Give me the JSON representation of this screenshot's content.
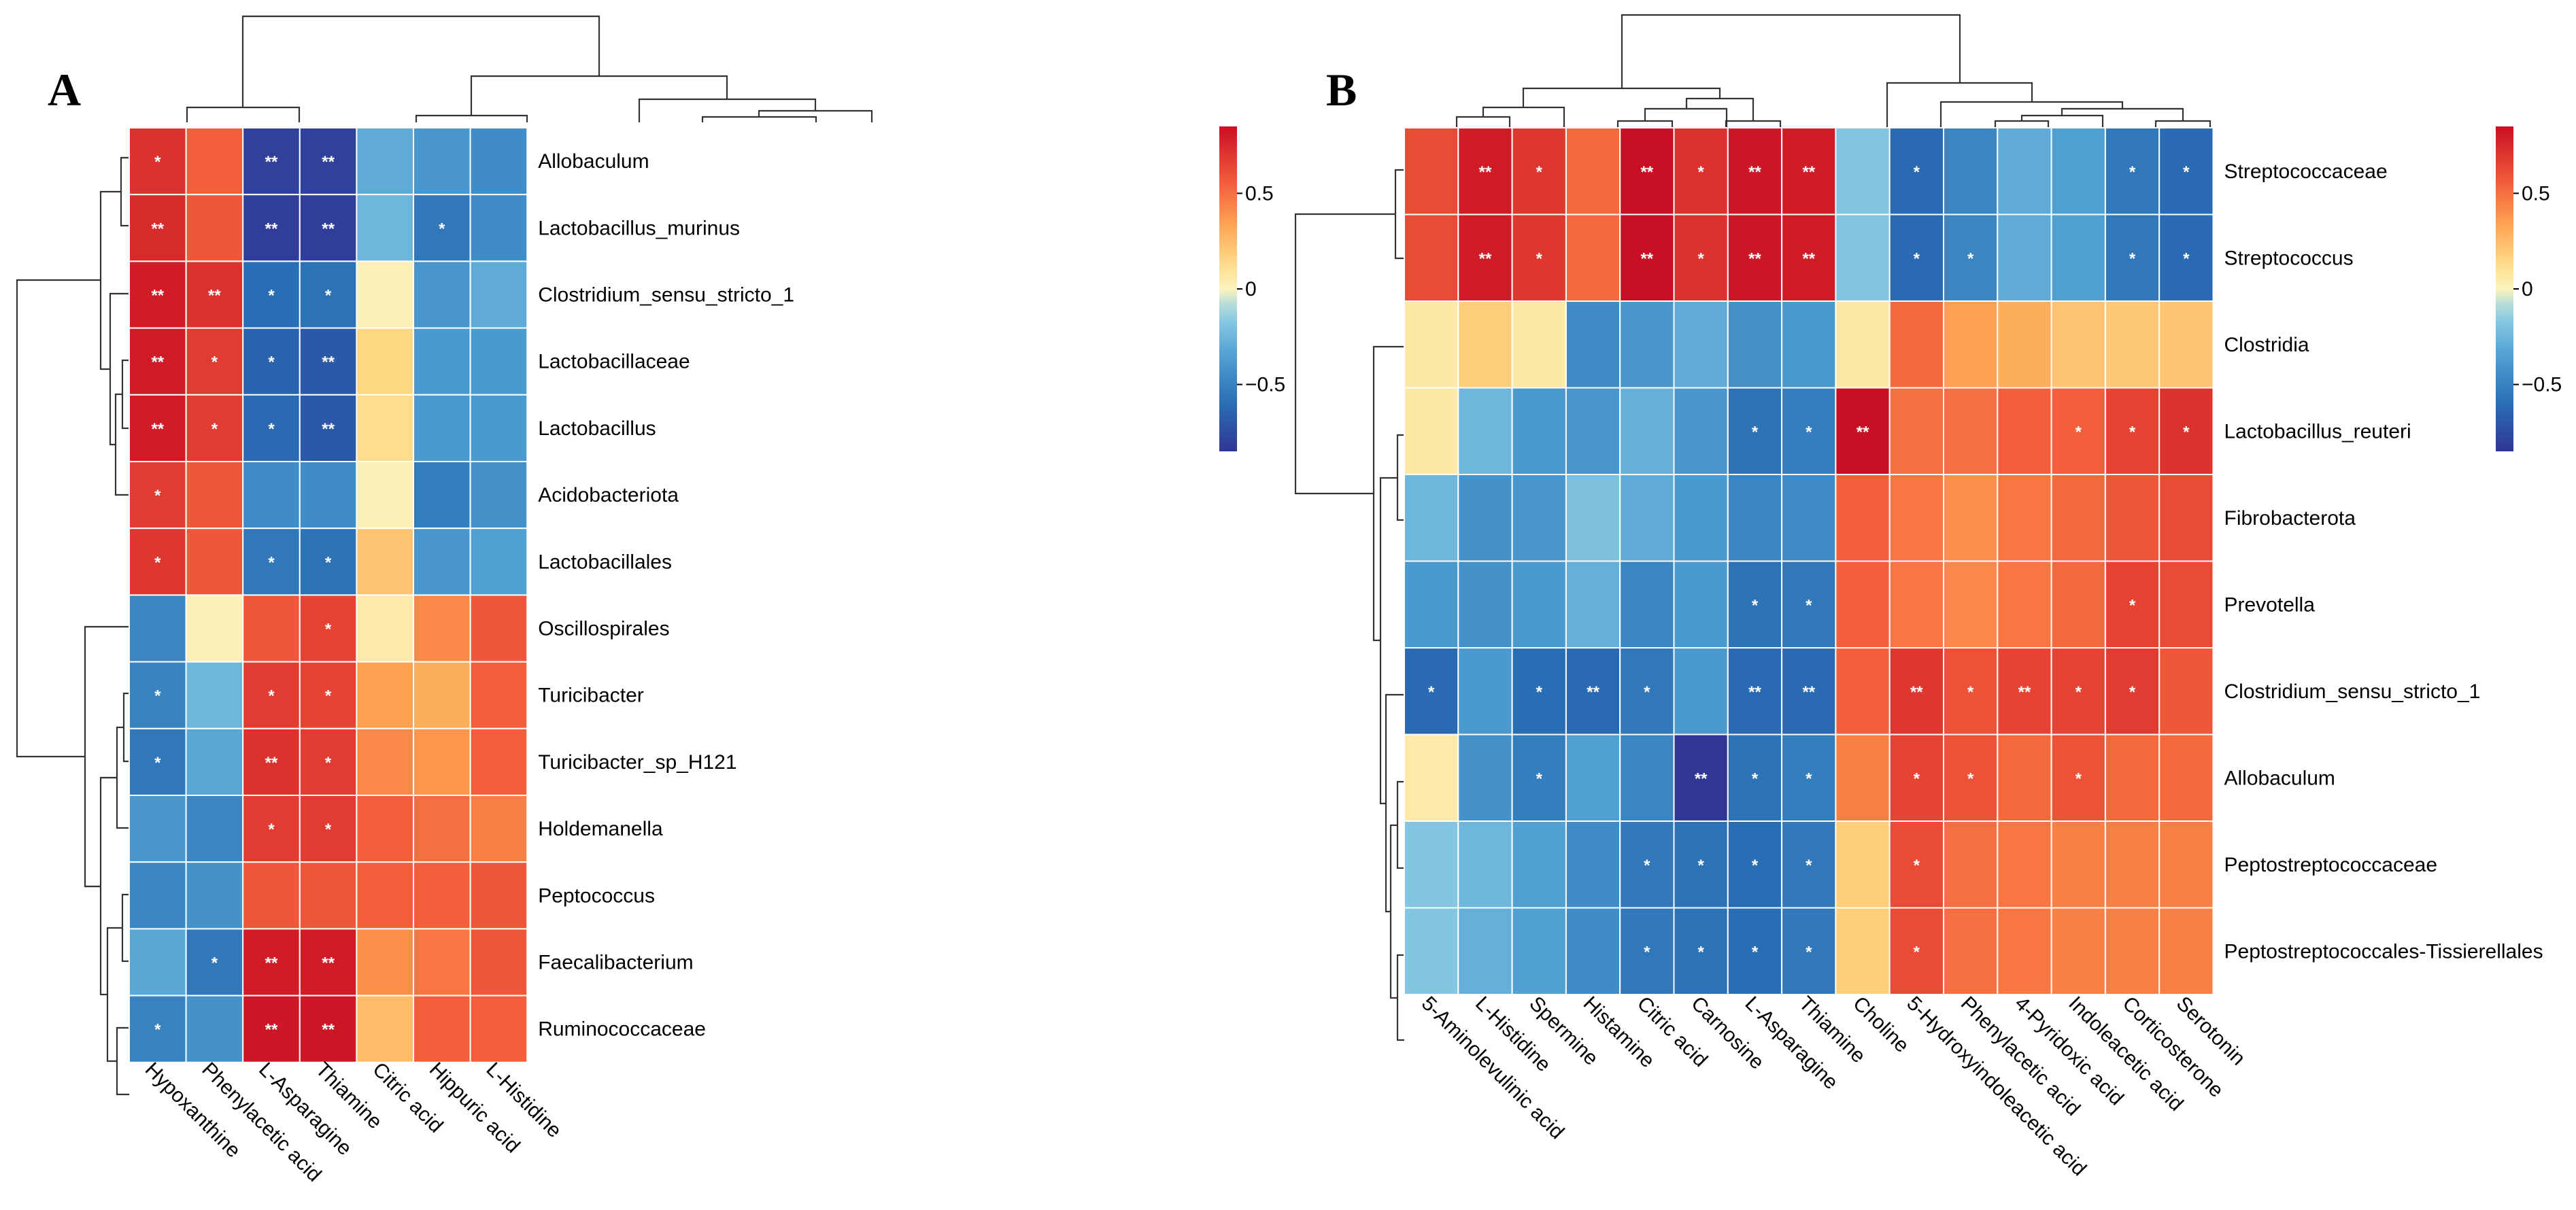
{
  "chart_data": [
    {
      "type": "heatmap",
      "panel": "A",
      "rows": [
        "Allobaculum",
        "Lactobacillus_murinus",
        "Clostridium_sensu_stricto_1",
        "Lactobacillaceae",
        "Lactobacillus",
        "Acidobacteriota",
        "Lactobacillales",
        "Oscillospirales",
        "Turicibacter",
        "Turicibacter_sp_H121",
        "Holdemanella",
        "Peptococcus",
        "Faecalibacterium",
        "Ruminococcaceae"
      ],
      "columns": [
        "Hypoxanthine",
        "Phenylacetic acid",
        "L-Asparagine",
        "Thiamine",
        "Citric acid",
        "Hippuric acid",
        "L-Histidine"
      ],
      "values": [
        [
          0.72,
          0.55,
          -0.8,
          -0.8,
          -0.3,
          -0.4,
          -0.45
        ],
        [
          0.75,
          0.58,
          -0.82,
          -0.82,
          -0.25,
          -0.55,
          -0.45
        ],
        [
          0.8,
          0.72,
          -0.6,
          -0.58,
          0.02,
          -0.4,
          -0.3
        ],
        [
          0.8,
          0.68,
          -0.65,
          -0.7,
          0.15,
          -0.38,
          -0.38
        ],
        [
          0.8,
          0.68,
          -0.62,
          -0.7,
          0.12,
          -0.38,
          -0.38
        ],
        [
          0.68,
          0.58,
          -0.45,
          -0.45,
          0.02,
          -0.52,
          -0.42
        ],
        [
          0.7,
          0.58,
          -0.55,
          -0.58,
          0.22,
          -0.4,
          -0.35
        ],
        [
          -0.48,
          0.02,
          0.58,
          0.65,
          0.05,
          0.42,
          0.58
        ],
        [
          -0.5,
          -0.25,
          0.68,
          0.65,
          0.35,
          0.3,
          0.55
        ],
        [
          -0.55,
          -0.32,
          0.72,
          0.68,
          0.42,
          0.38,
          0.55
        ],
        [
          -0.4,
          -0.48,
          0.68,
          0.68,
          0.55,
          0.5,
          0.45
        ],
        [
          -0.48,
          -0.42,
          0.58,
          0.58,
          0.55,
          0.55,
          0.58
        ],
        [
          -0.32,
          -0.55,
          0.8,
          0.8,
          0.4,
          0.48,
          0.58
        ],
        [
          -0.5,
          -0.42,
          0.82,
          0.82,
          0.25,
          0.55,
          0.55
        ]
      ],
      "significance": [
        [
          "*",
          "",
          "**",
          "**",
          "",
          "",
          ""
        ],
        [
          "**",
          "",
          "**",
          "**",
          "",
          "*",
          ""
        ],
        [
          "**",
          "**",
          "*",
          "*",
          "",
          "",
          ""
        ],
        [
          "**",
          "*",
          "*",
          "**",
          "",
          "",
          ""
        ],
        [
          "**",
          "*",
          "*",
          "**",
          "",
          "",
          ""
        ],
        [
          "*",
          "",
          "",
          "",
          "",
          "",
          ""
        ],
        [
          "*",
          "",
          "*",
          "*",
          "",
          "",
          ""
        ],
        [
          "",
          "",
          "",
          "*",
          "",
          "",
          ""
        ],
        [
          "*",
          "",
          "*",
          "*",
          "",
          "",
          ""
        ],
        [
          "*",
          "",
          "**",
          "*",
          "",
          "",
          ""
        ],
        [
          "",
          "",
          "*",
          "*",
          "",
          "",
          ""
        ],
        [
          "",
          "",
          "",
          "",
          "",
          "",
          ""
        ],
        [
          "",
          "*",
          "**",
          "**",
          "",
          "",
          ""
        ],
        [
          "*",
          "",
          "**",
          "**",
          "",
          "",
          ""
        ]
      ],
      "legend_ticks": [
        "0.5",
        "0",
        "−0.5"
      ],
      "legend_values": [
        0.5,
        0,
        -0.5
      ],
      "value_range": [
        -0.85,
        0.85
      ]
    },
    {
      "type": "heatmap",
      "panel": "B",
      "rows": [
        "Streptococcaceae",
        "Streptococcus",
        "Clostridia",
        "Lactobacillus_reuteri",
        "Fibrobacterota",
        "Prevotella",
        "Clostridium_sensu_stricto_1",
        "Allobaculum",
        "Peptostreptococcaceae",
        "Peptostreptococcales-Tissierellales"
      ],
      "columns": [
        "5-Aminolevulinic acid",
        "L-Histidine",
        "Spermine",
        "Histamine",
        "Citric acid",
        "Carnosine",
        "L-Asparagine",
        "Thiamine",
        "Choline",
        "5-Hydroxyindoleacetic acid",
        "Phenylacetic acid",
        "4-Pyridoxic acid",
        "Indoleacetic acid",
        "Corticosterone",
        "Serotonin"
      ],
      "values": [
        [
          0.62,
          0.8,
          0.7,
          0.52,
          0.85,
          0.72,
          0.82,
          0.8,
          -0.18,
          -0.62,
          -0.48,
          -0.3,
          -0.35,
          -0.55,
          -0.62
        ],
        [
          0.62,
          0.8,
          0.7,
          0.52,
          0.85,
          0.72,
          0.82,
          0.8,
          -0.18,
          -0.62,
          -0.48,
          -0.3,
          -0.35,
          -0.55,
          -0.62
        ],
        [
          0.06,
          0.18,
          0.06,
          -0.45,
          -0.4,
          -0.3,
          -0.42,
          -0.38,
          0.06,
          0.52,
          0.35,
          0.3,
          0.22,
          0.2,
          0.22
        ],
        [
          0.06,
          -0.25,
          -0.38,
          -0.4,
          -0.28,
          -0.4,
          -0.58,
          -0.52,
          0.92,
          0.5,
          0.5,
          0.55,
          0.55,
          0.65,
          0.72
        ],
        [
          -0.25,
          -0.42,
          -0.4,
          -0.2,
          -0.3,
          -0.38,
          -0.48,
          -0.45,
          0.55,
          0.48,
          0.4,
          0.48,
          0.52,
          0.58,
          0.62
        ],
        [
          -0.38,
          -0.42,
          -0.38,
          -0.28,
          -0.48,
          -0.38,
          -0.58,
          -0.55,
          0.55,
          0.48,
          0.42,
          0.48,
          0.52,
          0.65,
          0.62
        ],
        [
          -0.62,
          -0.38,
          -0.6,
          -0.62,
          -0.55,
          -0.38,
          -0.62,
          -0.62,
          0.55,
          0.7,
          0.6,
          0.65,
          0.65,
          0.68,
          0.58
        ],
        [
          0.05,
          -0.42,
          -0.52,
          -0.35,
          -0.48,
          -0.88,
          -0.58,
          -0.52,
          0.45,
          0.65,
          0.6,
          0.52,
          0.6,
          0.52,
          0.52
        ],
        [
          -0.18,
          -0.25,
          -0.35,
          -0.45,
          -0.55,
          -0.58,
          -0.6,
          -0.55,
          0.18,
          0.62,
          0.5,
          0.48,
          0.45,
          0.45,
          0.45
        ],
        [
          -0.18,
          -0.28,
          -0.35,
          -0.45,
          -0.55,
          -0.58,
          -0.6,
          -0.55,
          0.18,
          0.62,
          0.5,
          0.48,
          0.45,
          0.45,
          0.45
        ]
      ],
      "significance": [
        [
          "",
          "**",
          "*",
          "",
          "**",
          "*",
          "**",
          "**",
          "",
          "*",
          "",
          "",
          "",
          "*",
          "*"
        ],
        [
          "",
          "**",
          "*",
          "",
          "**",
          "*",
          "**",
          "**",
          "",
          "*",
          "*",
          "",
          "",
          "*",
          "*"
        ],
        [
          "",
          "",
          "",
          "",
          "",
          "",
          "",
          "",
          "",
          "",
          "",
          "",
          "",
          "",
          ""
        ],
        [
          "",
          "",
          "",
          "",
          "",
          "",
          "*",
          "*",
          "**",
          "",
          "",
          "",
          "*",
          "*",
          "*"
        ],
        [
          "",
          "",
          "",
          "",
          "",
          "",
          "",
          "",
          "",
          "",
          "",
          "",
          "",
          "",
          ""
        ],
        [
          "",
          "",
          "",
          "",
          "",
          "",
          "*",
          "*",
          "",
          "",
          "",
          "",
          "",
          "*",
          ""
        ],
        [
          "*",
          "",
          "*",
          "**",
          "*",
          "",
          "**",
          "**",
          "",
          "**",
          "*",
          "**",
          "*",
          "*",
          ""
        ],
        [
          "",
          "",
          "*",
          "",
          "",
          "**",
          "*",
          "*",
          "",
          "*",
          "*",
          "",
          "*",
          "",
          ""
        ],
        [
          "",
          "",
          "",
          "",
          "*",
          "*",
          "*",
          "*",
          "",
          "*",
          "",
          "",
          "",
          "",
          ""
        ],
        [
          "",
          "",
          "",
          "",
          "*",
          "*",
          "*",
          "*",
          "",
          "*",
          "",
          "",
          "",
          "",
          ""
        ]
      ],
      "legend_ticks": [
        "0.5",
        "0",
        "−0.5"
      ],
      "legend_values": [
        0.5,
        0,
        -0.5
      ],
      "value_range": [
        -0.85,
        0.85
      ]
    }
  ]
}
